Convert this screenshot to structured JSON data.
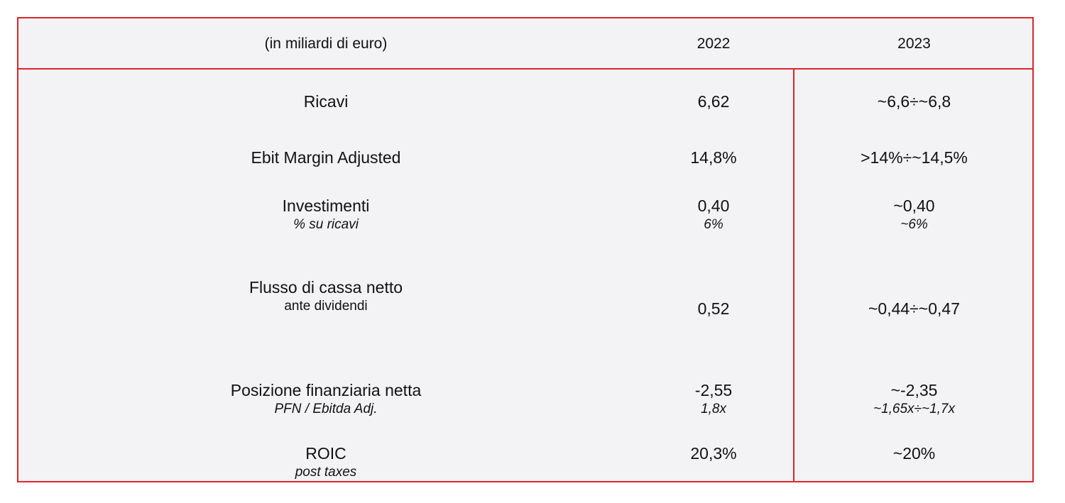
{
  "table": {
    "header": {
      "label": "(in miliardi di euro)",
      "col_2022": "2022",
      "col_2023": "2023"
    },
    "rows": [
      {
        "label": "Ricavi",
        "label_sub": "",
        "v2022": "6,62",
        "v2022_sub": "",
        "v2023": "~6,6÷~6,8",
        "v2023_sub": ""
      },
      {
        "label": "Ebit Margin Adjusted",
        "label_sub": "",
        "v2022": "14,8%",
        "v2022_sub": "",
        "v2023": ">14%÷~14,5%",
        "v2023_sub": ""
      },
      {
        "label": "Investimenti",
        "label_sub": "% su ricavi",
        "v2022": "0,40",
        "v2022_sub": "6%",
        "v2023": "~0,40",
        "v2023_sub": "~6%"
      },
      {
        "label": "Flusso di cassa netto",
        "label_sub": "ante dividendi",
        "v2022": "0,52",
        "v2022_sub": "",
        "v2023": "~0,44÷~0,47",
        "v2023_sub": ""
      },
      {
        "label": "Posizione finanziaria netta",
        "label_sub": "PFN / Ebitda Adj.",
        "v2022": "-2,55",
        "v2022_sub": "1,8x",
        "v2023": "~-2,35",
        "v2023_sub": "~1,65x÷~1,7x"
      },
      {
        "label": "ROIC",
        "label_sub": "post taxes",
        "v2022": "20,3%",
        "v2022_sub": "",
        "v2023": "~20%",
        "v2023_sub": ""
      }
    ]
  },
  "colors": {
    "border": "#e0242b",
    "background": "#f3f3f5"
  }
}
